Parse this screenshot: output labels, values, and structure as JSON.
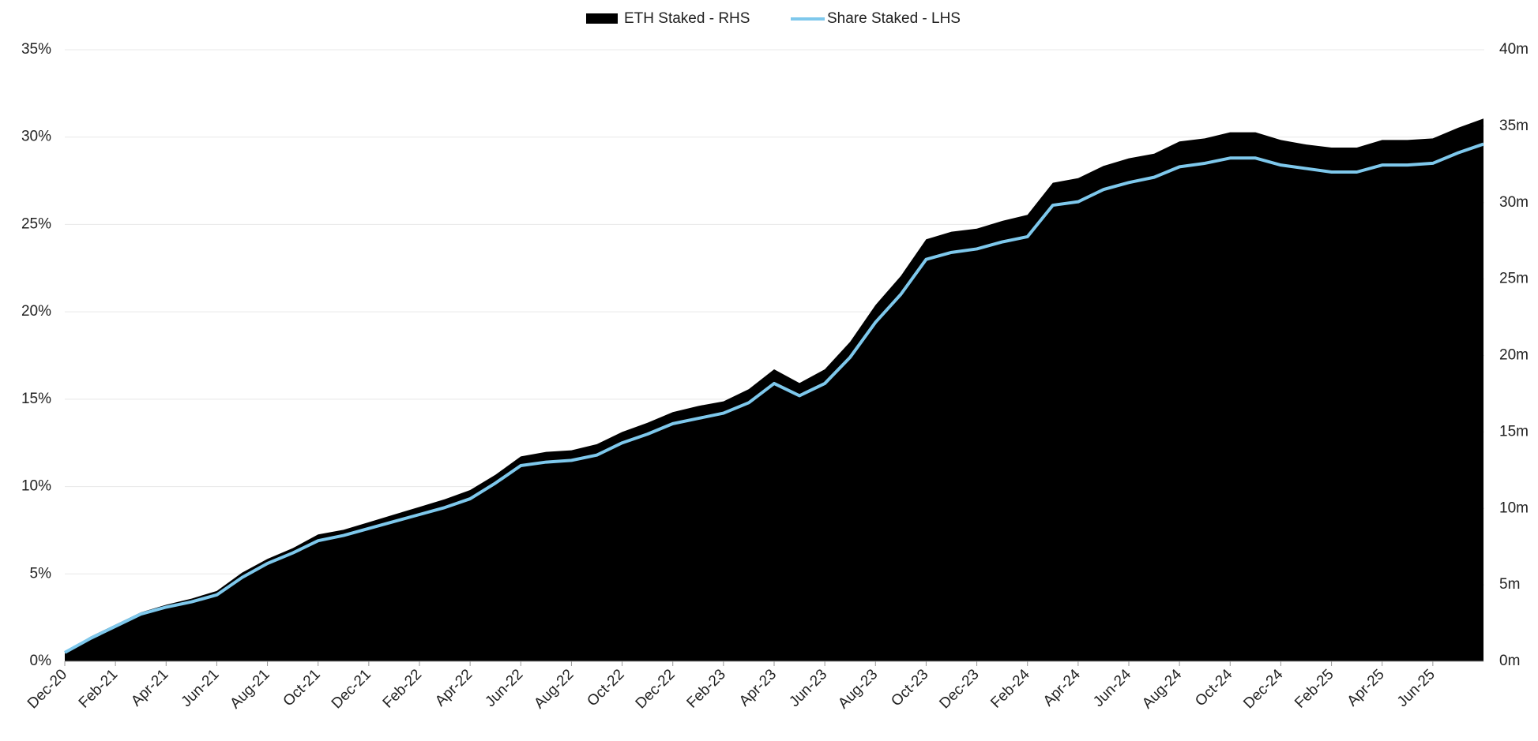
{
  "chart_data": {
    "type": "line",
    "categories": [
      "Dec-20",
      null,
      "Feb-21",
      null,
      "Apr-21",
      null,
      "Jun-21",
      null,
      "Aug-21",
      null,
      "Oct-21",
      null,
      "Dec-21",
      null,
      "Feb-22",
      null,
      "Apr-22",
      null,
      "Jun-22",
      null,
      "Aug-22",
      null,
      "Oct-22",
      null,
      "Dec-22",
      null,
      "Feb-23",
      null,
      "Apr-23",
      null,
      "Jun-23",
      null,
      "Aug-23",
      null,
      "Oct-23",
      null,
      "Dec-23",
      null,
      "Feb-24",
      null,
      "Apr-24",
      null,
      "Jun-24",
      null,
      "Aug-24",
      null,
      "Oct-24",
      null,
      "Dec-24",
      null,
      "Feb-25",
      null,
      "Apr-25",
      null,
      "Jun-25",
      null,
      null
    ],
    "series": [
      {
        "name": "ETH Staked - RHS",
        "type": "area",
        "axis": "y2",
        "color": "#000000",
        "values": [
          0.6,
          1.6,
          2.4,
          3.2,
          3.7,
          4.1,
          4.6,
          5.8,
          6.7,
          7.4,
          8.3,
          8.6,
          9.1,
          9.6,
          10.1,
          10.6,
          11.2,
          12.2,
          13.4,
          13.7,
          13.8,
          14.2,
          15.0,
          15.6,
          16.3,
          16.7,
          17.0,
          17.8,
          19.1,
          18.2,
          19.1,
          20.9,
          23.3,
          25.2,
          27.6,
          28.1,
          28.3,
          28.8,
          29.2,
          31.3,
          31.6,
          32.4,
          32.9,
          33.2,
          34.0,
          34.2,
          34.6,
          34.6,
          34.1,
          33.8,
          33.6,
          33.6,
          34.1,
          34.1,
          34.2,
          34.9,
          35.5
        ]
      },
      {
        "name": "Share Staked - LHS",
        "type": "line",
        "axis": "y",
        "color": "#7ec8ec",
        "values": [
          0.5,
          1.3,
          2.0,
          2.7,
          3.1,
          3.4,
          3.8,
          4.8,
          5.6,
          6.2,
          6.9,
          7.2,
          7.6,
          8.0,
          8.4,
          8.8,
          9.3,
          10.2,
          11.2,
          11.4,
          11.5,
          11.8,
          12.5,
          13.0,
          13.6,
          13.9,
          14.2,
          14.8,
          15.9,
          15.2,
          15.9,
          17.4,
          19.4,
          21.0,
          23.0,
          23.4,
          23.6,
          24.0,
          24.3,
          26.1,
          26.3,
          27.0,
          27.4,
          27.7,
          28.3,
          28.5,
          28.8,
          28.8,
          28.4,
          28.2,
          28.0,
          28.0,
          28.4,
          28.4,
          28.5,
          29.1,
          29.6
        ]
      }
    ],
    "ylim": [
      0,
      35
    ],
    "yticks": [
      {
        "value": 0,
        "label": "0%"
      },
      {
        "value": 5,
        "label": "5%"
      },
      {
        "value": 10,
        "label": "10%"
      },
      {
        "value": 15,
        "label": "15%"
      },
      {
        "value": 20,
        "label": "20%"
      },
      {
        "value": 25,
        "label": "25%"
      },
      {
        "value": 30,
        "label": "30%"
      },
      {
        "value": 35,
        "label": "35%"
      }
    ],
    "y2lim": [
      0,
      40
    ],
    "y2ticks": [
      {
        "value": 0,
        "label": "0m"
      },
      {
        "value": 5,
        "label": "5m"
      },
      {
        "value": 10,
        "label": "10m"
      },
      {
        "value": 15,
        "label": "15m"
      },
      {
        "value": 20,
        "label": "20m"
      },
      {
        "value": 25,
        "label": "25m"
      },
      {
        "value": 30,
        "label": "30m"
      },
      {
        "value": 35,
        "label": "35m"
      },
      {
        "value": 40,
        "label": "40m"
      }
    ],
    "grid": true,
    "legend": "top"
  }
}
